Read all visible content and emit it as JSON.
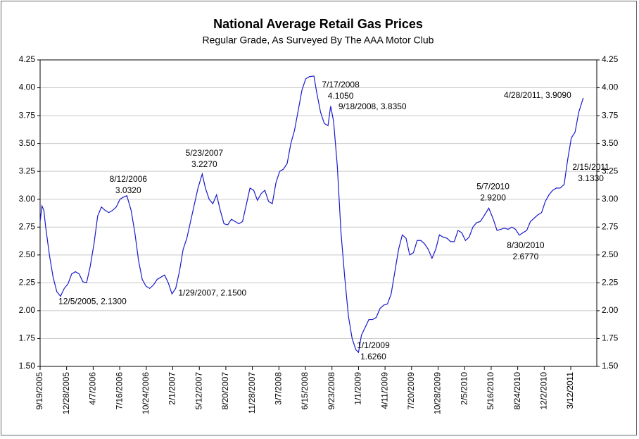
{
  "chart_data": {
    "type": "line",
    "title": "National Average Retail Gas Prices",
    "subtitle": "Regular Grade, As Surveyed By The AAA Motor Club",
    "color": "#1a1acc",
    "annotation_color": "#2a2ad0",
    "grid": true,
    "xlim": [
      "9/19/2005",
      "6/18/2011"
    ],
    "xticks": [
      "9/19/2005",
      "12/28/2005",
      "4/7/2006",
      "7/16/2006",
      "10/24/2006",
      "2/1/2007",
      "5/12/2007",
      "8/20/2007",
      "11/28/2007",
      "3/7/2008",
      "6/15/2008",
      "9/23/2008",
      "1/1/2009",
      "4/11/2009",
      "7/20/2009",
      "10/28/2009",
      "2/5/2010",
      "5/16/2010",
      "8/24/2010",
      "12/2/2010",
      "3/12/2011"
    ],
    "ylim": [
      1.5,
      4.25
    ],
    "yticks": [
      {
        "value": 1.5,
        "label": "1.50"
      },
      1.75,
      {
        "value": 2,
        "label": "2.00"
      },
      2.25,
      {
        "value": 2.5,
        "label": "2.50"
      },
      2.75,
      {
        "value": 3,
        "label": "3.00"
      },
      3.25,
      {
        "value": 3.5,
        "label": "3.50"
      },
      3.75,
      {
        "value": 4,
        "label": "4.00"
      },
      4.25
    ],
    "x": [
      "9/19/2005",
      "9/26/2005",
      "10/3/2005",
      "10/10/2005",
      "10/24/2005",
      "11/7/2005",
      "11/21/2005",
      "12/5/2005",
      "12/19/2005",
      "1/2/2006",
      "1/16/2006",
      "1/30/2006",
      "2/13/2006",
      "2/27/2006",
      "3/13/2006",
      "3/27/2006",
      "4/10/2006",
      "4/24/2006",
      "5/8/2006",
      "5/22/2006",
      "6/5/2006",
      "6/19/2006",
      "7/3/2006",
      "7/17/2006",
      "7/31/2006",
      "8/12/2006",
      "8/28/2006",
      "9/11/2006",
      "9/25/2006",
      "10/9/2006",
      "10/23/2006",
      "11/6/2006",
      "11/20/2006",
      "12/4/2006",
      "12/18/2006",
      "1/1/2007",
      "1/15/2007",
      "1/29/2007",
      "2/12/2007",
      "2/26/2007",
      "3/12/2007",
      "3/26/2007",
      "4/9/2007",
      "4/23/2007",
      "5/7/2007",
      "5/23/2007",
      "6/4/2007",
      "6/18/2007",
      "7/2/2007",
      "7/16/2007",
      "7/30/2007",
      "8/13/2007",
      "8/27/2007",
      "9/10/2007",
      "9/24/2007",
      "10/8/2007",
      "10/22/2007",
      "11/5/2007",
      "11/19/2007",
      "12/3/2007",
      "12/17/2007",
      "12/31/2007",
      "1/14/2008",
      "1/28/2008",
      "2/11/2008",
      "2/25/2008",
      "3/10/2008",
      "3/24/2008",
      "4/7/2008",
      "4/21/2008",
      "5/5/2008",
      "5/19/2008",
      "6/2/2008",
      "6/16/2008",
      "6/30/2008",
      "7/17/2008",
      "7/28/2008",
      "8/11/2008",
      "8/25/2008",
      "9/8/2008",
      "9/18/2008",
      "9/29/2008",
      "10/13/2008",
      "10/27/2008",
      "11/10/2008",
      "11/24/2008",
      "12/8/2008",
      "12/22/2008",
      "1/1/2009",
      "1/12/2009",
      "1/26/2009",
      "2/9/2009",
      "2/23/2009",
      "3/9/2009",
      "3/23/2009",
      "4/6/2009",
      "4/20/2009",
      "5/4/2009",
      "5/18/2009",
      "6/1/2009",
      "6/15/2009",
      "6/29/2009",
      "7/13/2009",
      "7/27/2009",
      "8/10/2009",
      "8/24/2009",
      "9/7/2009",
      "9/21/2009",
      "10/5/2009",
      "10/19/2009",
      "11/2/2009",
      "11/16/2009",
      "11/30/2009",
      "12/14/2009",
      "12/28/2009",
      "1/11/2010",
      "1/25/2010",
      "2/8/2010",
      "2/22/2010",
      "3/8/2010",
      "3/22/2010",
      "4/5/2010",
      "4/19/2010",
      "5/7/2010",
      "5/24/2010",
      "6/7/2010",
      "6/21/2010",
      "7/5/2010",
      "7/19/2010",
      "8/2/2010",
      "8/16/2010",
      "8/30/2010",
      "9/13/2010",
      "9/27/2010",
      "10/11/2010",
      "10/25/2010",
      "11/8/2010",
      "11/22/2010",
      "12/6/2010",
      "12/20/2010",
      "1/3/2011",
      "1/17/2011",
      "1/31/2011",
      "2/15/2011",
      "2/28/2011",
      "3/14/2011",
      "3/28/2011",
      "4/11/2011",
      "4/28/2011"
    ],
    "values": [
      2.8,
      2.94,
      2.9,
      2.75,
      2.5,
      2.3,
      2.17,
      2.13,
      2.2,
      2.24,
      2.33,
      2.35,
      2.33,
      2.26,
      2.25,
      2.4,
      2.6,
      2.85,
      2.93,
      2.9,
      2.88,
      2.9,
      2.93,
      3.0,
      3.02,
      3.032,
      2.9,
      2.7,
      2.45,
      2.28,
      2.22,
      2.2,
      2.23,
      2.28,
      2.3,
      2.32,
      2.25,
      2.15,
      2.2,
      2.35,
      2.55,
      2.65,
      2.8,
      2.95,
      3.1,
      3.227,
      3.1,
      3.0,
      2.96,
      3.04,
      2.9,
      2.78,
      2.77,
      2.82,
      2.8,
      2.78,
      2.8,
      2.95,
      3.1,
      3.08,
      2.99,
      3.05,
      3.08,
      2.98,
      2.96,
      3.15,
      3.25,
      3.27,
      3.32,
      3.5,
      3.62,
      3.8,
      3.98,
      4.08,
      4.1,
      4.105,
      3.95,
      3.78,
      3.68,
      3.66,
      3.835,
      3.7,
      3.3,
      2.7,
      2.3,
      1.95,
      1.75,
      1.65,
      1.626,
      1.78,
      1.85,
      1.92,
      1.92,
      1.94,
      2.02,
      2.05,
      2.06,
      2.15,
      2.35,
      2.55,
      2.68,
      2.65,
      2.5,
      2.52,
      2.63,
      2.63,
      2.6,
      2.55,
      2.47,
      2.55,
      2.68,
      2.66,
      2.65,
      2.62,
      2.62,
      2.72,
      2.7,
      2.63,
      2.66,
      2.75,
      2.79,
      2.8,
      2.85,
      2.92,
      2.82,
      2.72,
      2.73,
      2.74,
      2.73,
      2.75,
      2.73,
      2.677,
      2.7,
      2.72,
      2.8,
      2.83,
      2.86,
      2.88,
      2.98,
      3.04,
      3.08,
      3.1,
      3.1,
      3.133,
      3.35,
      3.55,
      3.6,
      3.78,
      3.909
    ],
    "annotations": [
      {
        "x": "12/5/2005",
        "value": 2.13,
        "lines": [
          "12/5/2005, 2.1300"
        ]
      },
      {
        "x": "8/12/2006",
        "value": 3.032,
        "lines": [
          "8/12/2006",
          "3.0320"
        ]
      },
      {
        "x": "1/29/2007",
        "value": 2.15,
        "lines": [
          "1/29/2007, 2.1500"
        ]
      },
      {
        "x": "5/23/2007",
        "value": 3.227,
        "lines": [
          "5/23/2007",
          "3.2270"
        ]
      },
      {
        "x": "7/17/2008",
        "value": 4.105,
        "lines": [
          "7/17/2008",
          "4.1050"
        ]
      },
      {
        "x": "9/18/2008",
        "value": 3.835,
        "lines": [
          "9/18/2008, 3.8350"
        ]
      },
      {
        "x": "1/1/2009",
        "value": 1.626,
        "lines": [
          "1/1/2009",
          "1.6260"
        ]
      },
      {
        "x": "5/7/2010",
        "value": 2.92,
        "lines": [
          "5/7/2010",
          "2.9200"
        ]
      },
      {
        "x": "8/30/2010",
        "value": 2.677,
        "lines": [
          "8/30/2010",
          "2.6770"
        ]
      },
      {
        "x": "2/15/2011",
        "value": 3.133,
        "lines": [
          "2/15/2011",
          "3.1330"
        ]
      },
      {
        "x": "4/28/2011",
        "value": 3.909,
        "lines": [
          "4/28/2011, 3.9090"
        ]
      }
    ]
  }
}
